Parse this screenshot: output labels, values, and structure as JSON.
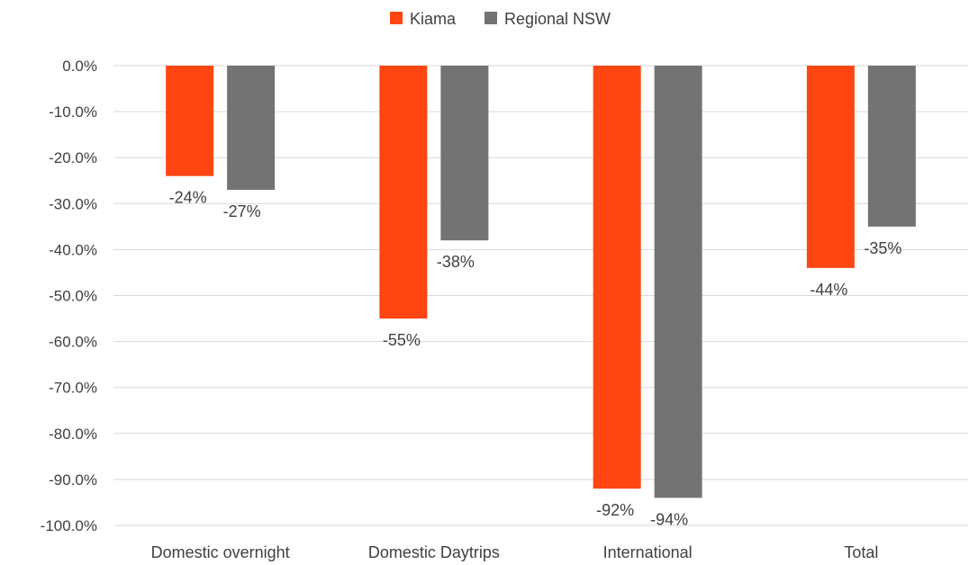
{
  "chart_data": {
    "type": "bar",
    "categories": [
      "Domestic overnight",
      "Domestic Daytrips",
      "International",
      "Total"
    ],
    "series": [
      {
        "name": "Kiama",
        "color": "#FF4612",
        "values": [
          -24,
          -55,
          -92,
          -44
        ],
        "labels": [
          "-24%",
          "-55%",
          "-92%",
          "-44%"
        ]
      },
      {
        "name": "Regional NSW",
        "color": "#737373",
        "values": [
          -27,
          -38,
          -94,
          -35
        ],
        "labels": [
          "-27%",
          "-38%",
          "-94%",
          "-35%"
        ]
      }
    ],
    "yticks": [
      {
        "value": 0,
        "label": "0.0%"
      },
      {
        "value": -10,
        "label": "-10.0%"
      },
      {
        "value": -20,
        "label": "-20.0%"
      },
      {
        "value": -30,
        "label": "-30.0%"
      },
      {
        "value": -40,
        "label": "-40.0%"
      },
      {
        "value": -50,
        "label": "-50.0%"
      },
      {
        "value": -60,
        "label": "-60.0%"
      },
      {
        "value": -70,
        "label": "-70.0%"
      },
      {
        "value": -80,
        "label": "-80.0%"
      },
      {
        "value": -90,
        "label": "-90.0%"
      },
      {
        "value": -100,
        "label": "-100.0%"
      }
    ],
    "ylim": [
      -100,
      0
    ],
    "grid": true,
    "legend_position": "top-center",
    "title": "",
    "xlabel": "",
    "ylabel": ""
  }
}
